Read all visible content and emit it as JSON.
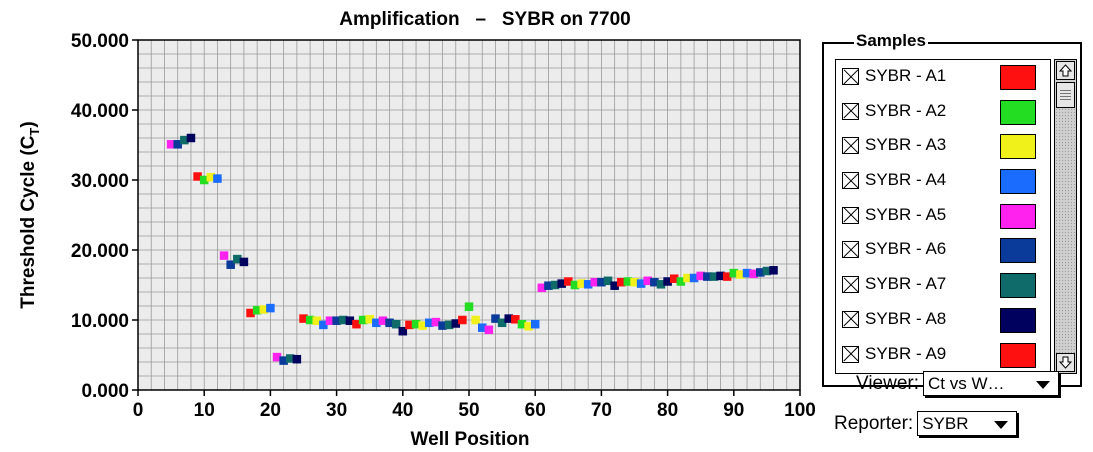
{
  "chart_data": {
    "type": "scatter",
    "title": "Amplification   –   SYBR on 7700",
    "xlabel": "Well Position",
    "ylabel": "Threshold Cycle (C_T)",
    "ylabel_main": "Threshold Cycle (C",
    "ylabel_sub": "T",
    "ylabel_close": ")",
    "xlim": [
      0,
      100
    ],
    "ylim": [
      0,
      50
    ],
    "xticks": [
      0,
      10,
      20,
      30,
      40,
      50,
      60,
      70,
      80,
      90,
      100
    ],
    "yticks": [
      0,
      10,
      20,
      30,
      40,
      50
    ],
    "xtick_labels": [
      "0",
      "10",
      "20",
      "30",
      "40",
      "50",
      "60",
      "70",
      "80",
      "90",
      "100"
    ],
    "ytick_labels": [
      "0.000",
      "10.000",
      "20.000",
      "30.000",
      "40.000",
      "50.000"
    ],
    "grid": true,
    "points": [
      {
        "x": 5,
        "y": 35.1,
        "color": "#ff22ee"
      },
      {
        "x": 6,
        "y": 35.1,
        "color": "#0a3a9a"
      },
      {
        "x": 7,
        "y": 35.7,
        "color": "#0f6a6a"
      },
      {
        "x": 8,
        "y": 36.0,
        "color": "#00005e"
      },
      {
        "x": 9,
        "y": 30.5,
        "color": "#ff1010"
      },
      {
        "x": 10,
        "y": 30.0,
        "color": "#22dd22"
      },
      {
        "x": 11,
        "y": 30.4,
        "color": "#f0f01a"
      },
      {
        "x": 12,
        "y": 30.2,
        "color": "#1a6cff"
      },
      {
        "x": 13,
        "y": 19.2,
        "color": "#ff22ee"
      },
      {
        "x": 14,
        "y": 17.9,
        "color": "#0a3a9a"
      },
      {
        "x": 15,
        "y": 18.7,
        "color": "#0f6a6a"
      },
      {
        "x": 16,
        "y": 18.3,
        "color": "#00005e"
      },
      {
        "x": 17,
        "y": 11.0,
        "color": "#ff1010"
      },
      {
        "x": 18,
        "y": 11.4,
        "color": "#22dd22"
      },
      {
        "x": 19,
        "y": 11.5,
        "color": "#f0f01a"
      },
      {
        "x": 20,
        "y": 11.7,
        "color": "#1a6cff"
      },
      {
        "x": 21,
        "y": 4.7,
        "color": "#ff22ee"
      },
      {
        "x": 22,
        "y": 4.2,
        "color": "#0a3a9a"
      },
      {
        "x": 23,
        "y": 4.5,
        "color": "#0f6a6a"
      },
      {
        "x": 24,
        "y": 4.4,
        "color": "#00005e"
      },
      {
        "x": 25,
        "y": 10.2,
        "color": "#ff1010"
      },
      {
        "x": 26,
        "y": 10.0,
        "color": "#22dd22"
      },
      {
        "x": 27,
        "y": 9.9,
        "color": "#f0f01a"
      },
      {
        "x": 28,
        "y": 9.3,
        "color": "#1a6cff"
      },
      {
        "x": 29,
        "y": 9.9,
        "color": "#ff22ee"
      },
      {
        "x": 30,
        "y": 9.9,
        "color": "#0a3a9a"
      },
      {
        "x": 31,
        "y": 10.0,
        "color": "#0f6a6a"
      },
      {
        "x": 32,
        "y": 9.9,
        "color": "#00005e"
      },
      {
        "x": 33,
        "y": 9.4,
        "color": "#ff1010"
      },
      {
        "x": 34,
        "y": 10.0,
        "color": "#22dd22"
      },
      {
        "x": 35,
        "y": 10.1,
        "color": "#f0f01a"
      },
      {
        "x": 36,
        "y": 9.6,
        "color": "#1a6cff"
      },
      {
        "x": 37,
        "y": 9.9,
        "color": "#ff22ee"
      },
      {
        "x": 38,
        "y": 9.6,
        "color": "#0a3a9a"
      },
      {
        "x": 39,
        "y": 9.4,
        "color": "#0f6a6a"
      },
      {
        "x": 40,
        "y": 8.4,
        "color": "#00005e"
      },
      {
        "x": 41,
        "y": 9.3,
        "color": "#ff1010"
      },
      {
        "x": 42,
        "y": 9.4,
        "color": "#22dd22"
      },
      {
        "x": 43,
        "y": 9.2,
        "color": "#f0f01a"
      },
      {
        "x": 44,
        "y": 9.6,
        "color": "#1a6cff"
      },
      {
        "x": 45,
        "y": 9.7,
        "color": "#ff22ee"
      },
      {
        "x": 46,
        "y": 9.2,
        "color": "#0a3a9a"
      },
      {
        "x": 47,
        "y": 9.3,
        "color": "#0f6a6a"
      },
      {
        "x": 48,
        "y": 9.5,
        "color": "#00005e"
      },
      {
        "x": 49,
        "y": 10.0,
        "color": "#ff1010"
      },
      {
        "x": 50,
        "y": 11.9,
        "color": "#22dd22"
      },
      {
        "x": 51,
        "y": 10.0,
        "color": "#f0f01a"
      },
      {
        "x": 52,
        "y": 8.9,
        "color": "#1a6cff"
      },
      {
        "x": 53,
        "y": 8.6,
        "color": "#ff22ee"
      },
      {
        "x": 54,
        "y": 10.2,
        "color": "#0a3a9a"
      },
      {
        "x": 55,
        "y": 9.6,
        "color": "#0f6a6a"
      },
      {
        "x": 56,
        "y": 10.2,
        "color": "#00005e"
      },
      {
        "x": 57,
        "y": 10.1,
        "color": "#ff1010"
      },
      {
        "x": 58,
        "y": 9.4,
        "color": "#22dd22"
      },
      {
        "x": 59,
        "y": 9.1,
        "color": "#f0f01a"
      },
      {
        "x": 60,
        "y": 9.4,
        "color": "#1a6cff"
      },
      {
        "x": 61,
        "y": 14.6,
        "color": "#ff22ee"
      },
      {
        "x": 62,
        "y": 14.9,
        "color": "#0a3a9a"
      },
      {
        "x": 63,
        "y": 15.0,
        "color": "#0f6a6a"
      },
      {
        "x": 64,
        "y": 15.2,
        "color": "#00005e"
      },
      {
        "x": 65,
        "y": 15.5,
        "color": "#ff1010"
      },
      {
        "x": 66,
        "y": 15.0,
        "color": "#22dd22"
      },
      {
        "x": 67,
        "y": 15.2,
        "color": "#f0f01a"
      },
      {
        "x": 68,
        "y": 15.1,
        "color": "#1a6cff"
      },
      {
        "x": 69,
        "y": 15.4,
        "color": "#ff22ee"
      },
      {
        "x": 70,
        "y": 15.4,
        "color": "#0a3a9a"
      },
      {
        "x": 71,
        "y": 15.6,
        "color": "#0f6a6a"
      },
      {
        "x": 72,
        "y": 14.9,
        "color": "#00005e"
      },
      {
        "x": 73,
        "y": 15.4,
        "color": "#ff1010"
      },
      {
        "x": 74,
        "y": 15.5,
        "color": "#22dd22"
      },
      {
        "x": 75,
        "y": 15.4,
        "color": "#f0f01a"
      },
      {
        "x": 76,
        "y": 15.2,
        "color": "#1a6cff"
      },
      {
        "x": 77,
        "y": 15.6,
        "color": "#ff22ee"
      },
      {
        "x": 78,
        "y": 15.4,
        "color": "#0a3a9a"
      },
      {
        "x": 79,
        "y": 15.1,
        "color": "#0f6a6a"
      },
      {
        "x": 80,
        "y": 15.5,
        "color": "#00005e"
      },
      {
        "x": 81,
        "y": 15.9,
        "color": "#ff1010"
      },
      {
        "x": 82,
        "y": 15.5,
        "color": "#22dd22"
      },
      {
        "x": 83,
        "y": 16.0,
        "color": "#f0f01a"
      },
      {
        "x": 84,
        "y": 16.0,
        "color": "#1a6cff"
      },
      {
        "x": 85,
        "y": 16.3,
        "color": "#ff22ee"
      },
      {
        "x": 86,
        "y": 16.2,
        "color": "#0a3a9a"
      },
      {
        "x": 87,
        "y": 16.2,
        "color": "#0f6a6a"
      },
      {
        "x": 88,
        "y": 16.3,
        "color": "#00005e"
      },
      {
        "x": 89,
        "y": 16.2,
        "color": "#ff1010"
      },
      {
        "x": 90,
        "y": 16.7,
        "color": "#22dd22"
      },
      {
        "x": 91,
        "y": 16.5,
        "color": "#f0f01a"
      },
      {
        "x": 92,
        "y": 16.7,
        "color": "#1a6cff"
      },
      {
        "x": 93,
        "y": 16.6,
        "color": "#ff22ee"
      },
      {
        "x": 94,
        "y": 16.8,
        "color": "#0a3a9a"
      },
      {
        "x": 95,
        "y": 17.0,
        "color": "#0f6a6a"
      },
      {
        "x": 96,
        "y": 17.1,
        "color": "#00005e"
      }
    ]
  },
  "samples_panel": {
    "title": "Samples",
    "items": [
      {
        "label": "SYBR - A1",
        "color": "#ff1010",
        "checked": true
      },
      {
        "label": "SYBR - A2",
        "color": "#22dd22",
        "checked": true
      },
      {
        "label": "SYBR - A3",
        "color": "#f0f01a",
        "checked": true
      },
      {
        "label": "SYBR - A4",
        "color": "#1a6cff",
        "checked": true
      },
      {
        "label": "SYBR - A5",
        "color": "#ff22ee",
        "checked": true
      },
      {
        "label": "SYBR - A6",
        "color": "#0a3a9a",
        "checked": true
      },
      {
        "label": "SYBR - A7",
        "color": "#0f6a6a",
        "checked": true
      },
      {
        "label": "SYBR - A8",
        "color": "#00005e",
        "checked": true
      },
      {
        "label": "SYBR - A9",
        "color": "#ff1010",
        "checked": true
      }
    ]
  },
  "viewer": {
    "label": "Viewer:",
    "value": "Ct vs W…"
  },
  "reporter": {
    "label": "Reporter:",
    "value": "SYBR"
  },
  "colors": {
    "plot_background": "#ececec",
    "grid": "#9a9a9a"
  }
}
